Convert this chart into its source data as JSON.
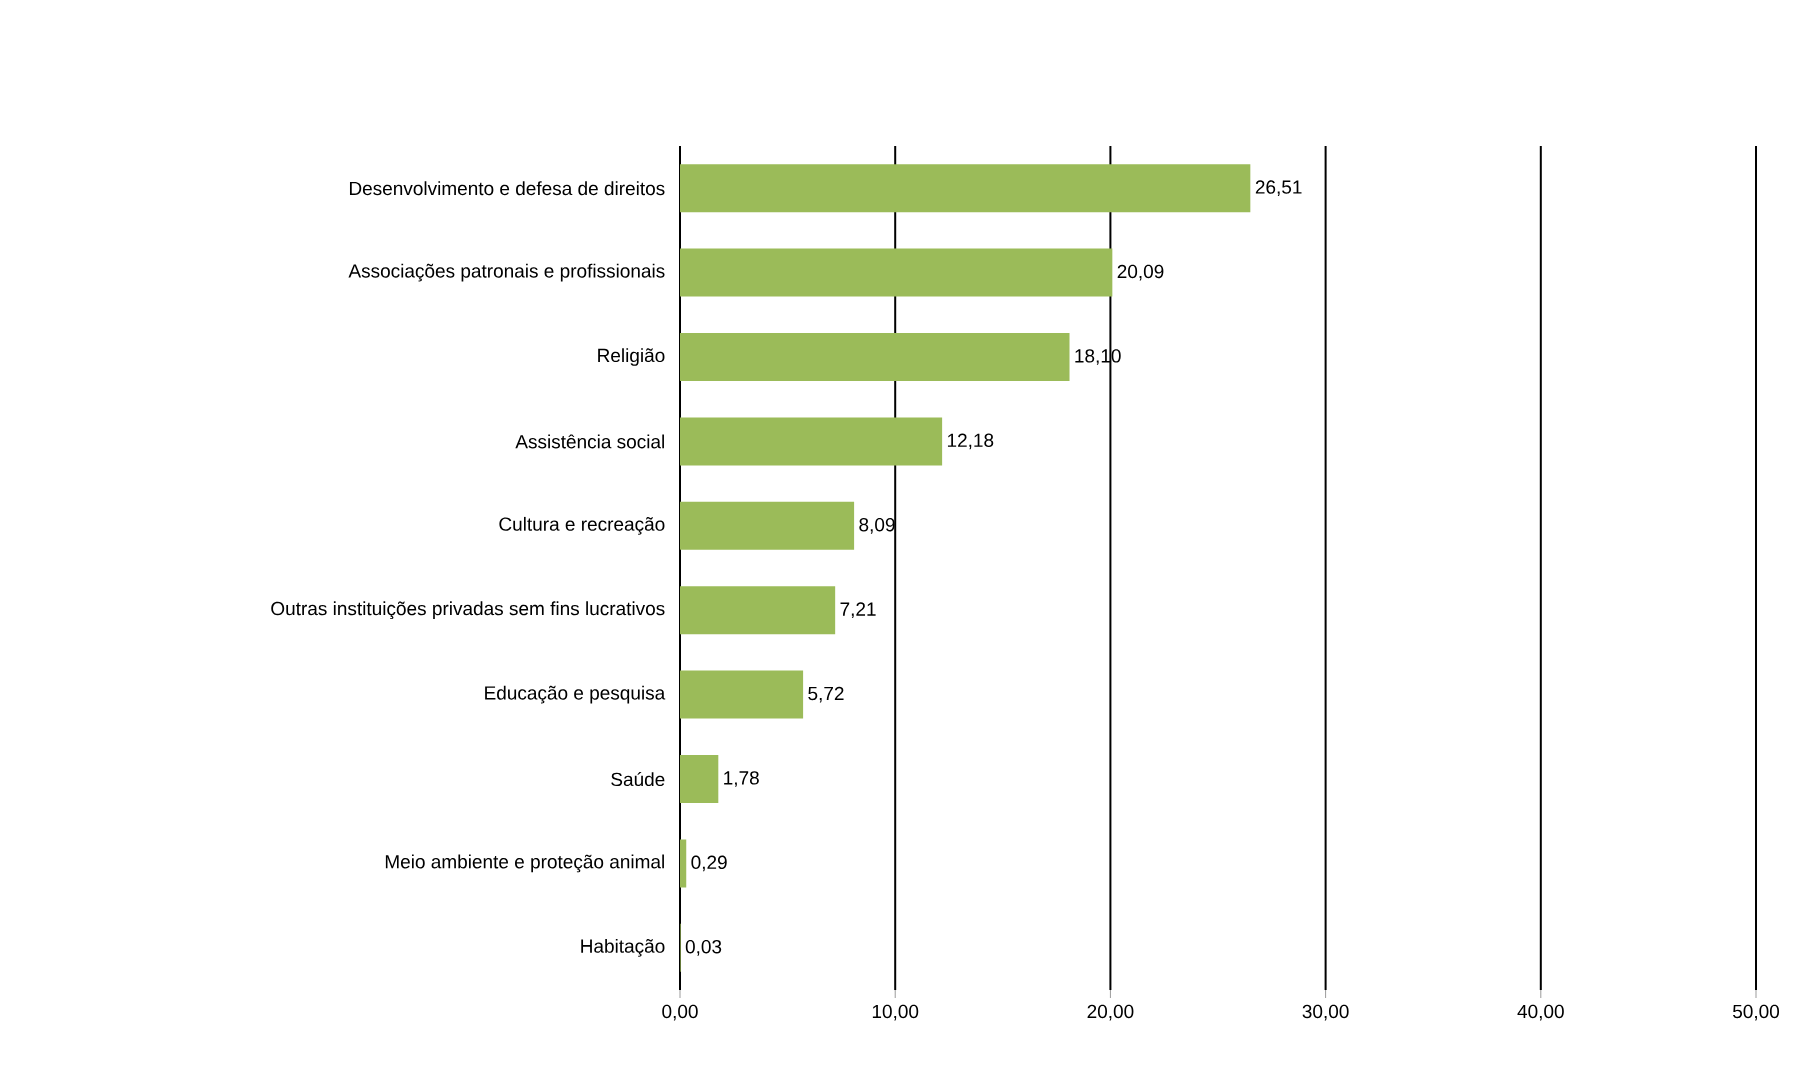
{
  "chart_data": {
    "type": "bar",
    "orientation": "horizontal",
    "categories": [
      "Desenvolvimento e defesa de direitos",
      "Associações patronais e profissionais",
      "Religião",
      "Assistência social",
      "Cultura e recreação",
      "Outras instituições privadas sem fins lucrativos",
      "Educação e pesquisa",
      "Saúde",
      "Meio ambiente e proteção animal",
      "Habitação"
    ],
    "values": [
      26.51,
      20.09,
      18.1,
      12.18,
      8.09,
      7.21,
      5.72,
      1.78,
      0.29,
      0.03
    ],
    "value_labels": [
      "26,51",
      "20,09",
      "18,10",
      "12,18",
      "8,09",
      "7,21",
      "5,72",
      "1,78",
      "0,29",
      "0,03"
    ],
    "color": "#9bbb59",
    "xlim": [
      0,
      50
    ],
    "xticks": [
      {
        "value": 0,
        "label": "0,00"
      },
      {
        "value": 10,
        "label": "10,00"
      },
      {
        "value": 20,
        "label": "20,00"
      },
      {
        "value": 30,
        "label": "30,00"
      },
      {
        "value": 40,
        "label": "40,00"
      },
      {
        "value": 50,
        "label": "50,00"
      }
    ],
    "grid": "x"
  }
}
